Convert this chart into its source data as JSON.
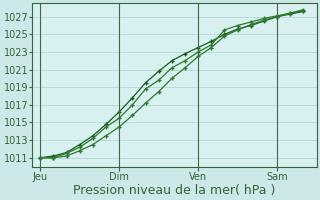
{
  "bg_color": "#cce8e8",
  "plot_bg_color": "#d8f0f0",
  "grid_color": "#b0d8d8",
  "line_color1": "#1a5c1a",
  "line_color2": "#2d7a2d",
  "line_color3": "#2d7a2d",
  "xlabel": "Pression niveau de la mer( hPa )",
  "xlabel_fontsize": 9,
  "tick_fontsize": 7,
  "ylim": [
    1010.0,
    1028.5
  ],
  "yticks": [
    1011,
    1013,
    1015,
    1017,
    1019,
    1021,
    1023,
    1025,
    1027
  ],
  "day_labels": [
    "Jeu",
    "Dim",
    "Ven",
    "Sam"
  ],
  "day_positions": [
    0.0,
    3.0,
    6.0,
    9.0
  ],
  "xlim": [
    -0.3,
    10.5
  ],
  "line1_x": [
    0.0,
    0.5,
    1.0,
    1.5,
    2.0,
    2.5,
    3.0,
    3.5,
    4.0,
    4.5,
    5.0,
    5.5,
    6.0,
    6.5,
    7.0,
    7.5,
    8.0,
    8.5,
    9.0,
    9.5,
    10.0
  ],
  "line1_y": [
    1011.0,
    1011.2,
    1011.6,
    1012.5,
    1013.5,
    1014.8,
    1016.2,
    1017.8,
    1019.5,
    1020.8,
    1022.0,
    1022.8,
    1023.5,
    1024.2,
    1025.0,
    1025.6,
    1026.0,
    1026.5,
    1027.0,
    1027.3,
    1027.6
  ],
  "line2_x": [
    0.0,
    0.5,
    1.0,
    1.5,
    2.0,
    2.5,
    3.0,
    3.5,
    4.0,
    4.5,
    5.0,
    5.5,
    6.0,
    6.5,
    7.0,
    7.5,
    8.0,
    8.5,
    9.0,
    9.5,
    10.0
  ],
  "line2_y": [
    1011.0,
    1011.0,
    1011.5,
    1012.2,
    1013.2,
    1014.5,
    1015.5,
    1017.0,
    1018.8,
    1019.8,
    1021.2,
    1022.0,
    1023.0,
    1023.8,
    1025.5,
    1026.0,
    1026.4,
    1026.8,
    1027.1,
    1027.4,
    1027.8
  ],
  "line3_x": [
    0.0,
    0.5,
    1.0,
    1.5,
    2.0,
    2.5,
    3.0,
    3.5,
    4.0,
    4.5,
    5.0,
    5.5,
    6.0,
    6.5,
    7.0,
    7.5,
    8.0,
    8.5,
    9.0,
    9.5,
    10.0
  ],
  "line3_y": [
    1011.0,
    1011.0,
    1011.2,
    1011.8,
    1012.5,
    1013.5,
    1014.5,
    1015.8,
    1017.2,
    1018.5,
    1020.0,
    1021.2,
    1022.5,
    1023.5,
    1024.8,
    1025.5,
    1026.1,
    1026.6,
    1027.0,
    1027.4,
    1027.7
  ],
  "vline_color": "#446644",
  "spine_color": "#336633"
}
